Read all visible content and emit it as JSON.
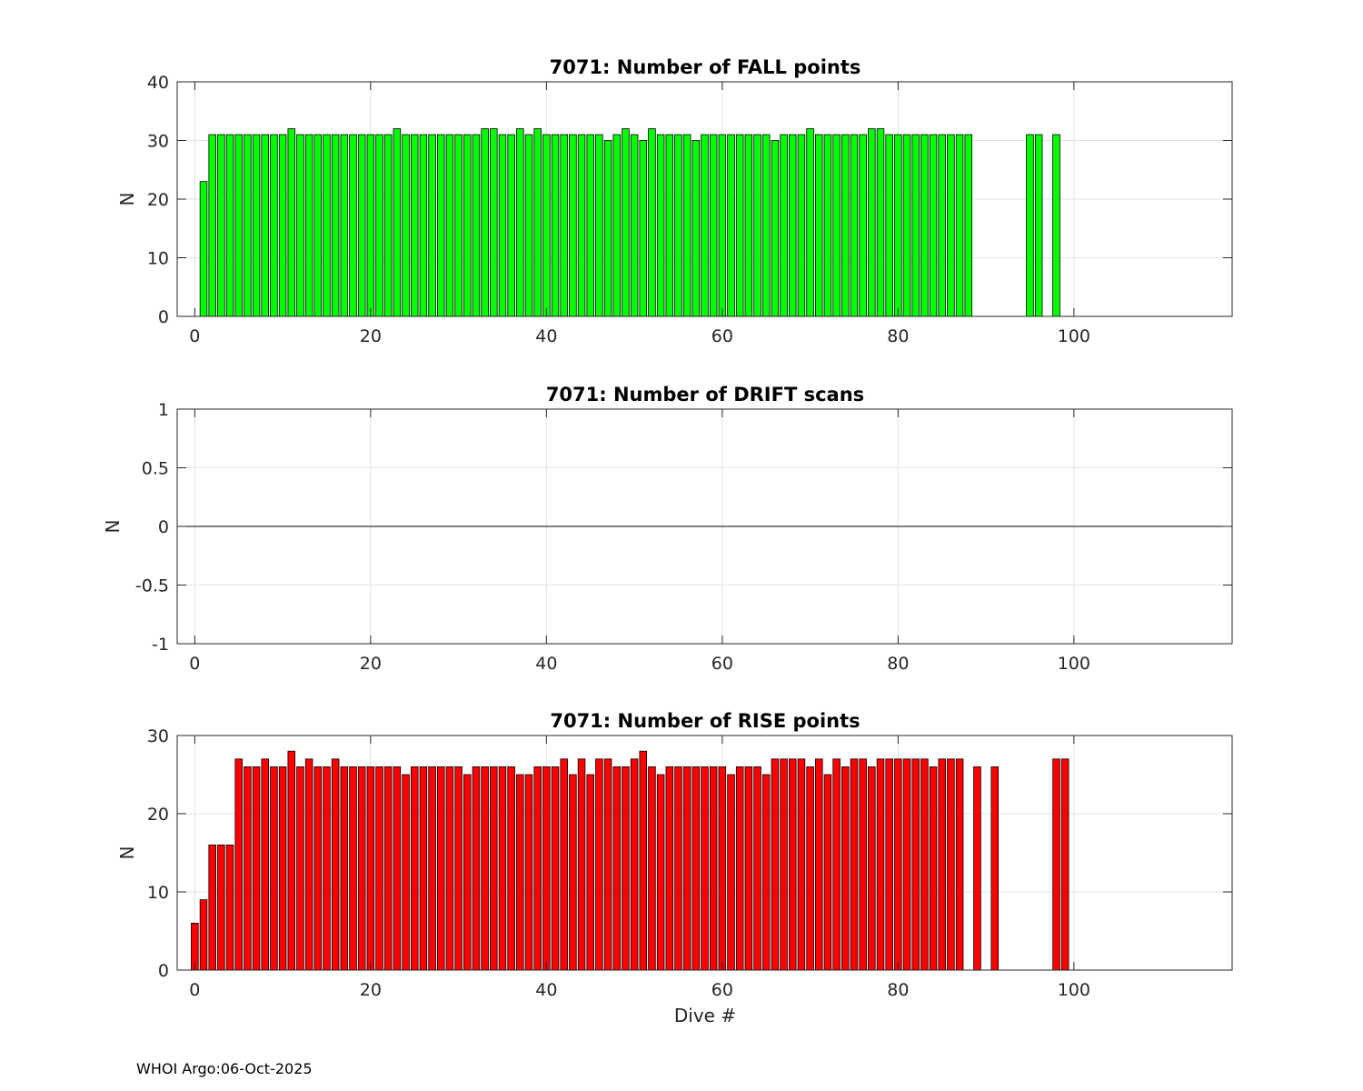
{
  "footer_text": "WHOI Argo:06-Oct-2025",
  "chart_data": [
    {
      "type": "bar",
      "title": "7071: Number of FALL points",
      "xlabel": "",
      "ylabel": "N",
      "xlim": [
        -2,
        118
      ],
      "ylim": [
        0,
        40
      ],
      "xticks": [
        "0",
        "20",
        "40",
        "60",
        "80",
        "100"
      ],
      "yticks": [
        "0",
        "10",
        "20",
        "30",
        "40"
      ],
      "grid": true,
      "bar_color": "#00ff00",
      "x": [
        1,
        2,
        3,
        4,
        5,
        6,
        7,
        8,
        9,
        10,
        11,
        12,
        13,
        14,
        15,
        16,
        17,
        18,
        19,
        20,
        21,
        22,
        23,
        24,
        25,
        26,
        27,
        28,
        29,
        30,
        31,
        32,
        33,
        34,
        35,
        36,
        37,
        38,
        39,
        40,
        41,
        42,
        43,
        44,
        45,
        46,
        47,
        48,
        49,
        50,
        51,
        52,
        53,
        54,
        55,
        56,
        57,
        58,
        59,
        60,
        61,
        62,
        63,
        64,
        65,
        66,
        67,
        68,
        69,
        70,
        71,
        72,
        73,
        74,
        75,
        76,
        77,
        78,
        79,
        80,
        81,
        82,
        83,
        84,
        85,
        86,
        87,
        88,
        95,
        96,
        98
      ],
      "values": [
        23,
        31,
        31,
        31,
        31,
        31,
        31,
        31,
        31,
        31,
        32,
        31,
        31,
        31,
        31,
        31,
        31,
        31,
        31,
        31,
        31,
        31,
        32,
        31,
        31,
        31,
        31,
        31,
        31,
        31,
        31,
        31,
        32,
        32,
        31,
        31,
        32,
        31,
        32,
        31,
        31,
        31,
        31,
        31,
        31,
        31,
        30,
        31,
        32,
        31,
        30,
        32,
        31,
        31,
        31,
        31,
        30,
        31,
        31,
        31,
        31,
        31,
        31,
        31,
        31,
        30,
        31,
        31,
        31,
        32,
        31,
        31,
        31,
        31,
        31,
        31,
        32,
        32,
        31,
        31,
        31,
        31,
        31,
        31,
        31,
        31,
        31,
        31,
        31,
        31,
        31
      ]
    },
    {
      "type": "bar",
      "title": "7071: Number of DRIFT scans",
      "xlabel": "",
      "ylabel": "N",
      "xlim": [
        -2,
        118
      ],
      "ylim": [
        -1,
        1
      ],
      "xticks": [
        "0",
        "20",
        "40",
        "60",
        "80",
        "100"
      ],
      "yticks": [
        "-1",
        "-0.5",
        "0",
        "0.5",
        "1"
      ],
      "grid": true,
      "x": [],
      "values": []
    },
    {
      "type": "bar",
      "title": "7071: Number of RISE points",
      "xlabel": "Dive #",
      "ylabel": "N",
      "xlim": [
        -2,
        118
      ],
      "ylim": [
        0,
        30
      ],
      "xticks": [
        "0",
        "20",
        "40",
        "60",
        "80",
        "100"
      ],
      "yticks": [
        "0",
        "10",
        "20",
        "30"
      ],
      "grid": true,
      "bar_color": "#ff0000",
      "x": [
        0,
        1,
        2,
        3,
        4,
        5,
        6,
        7,
        8,
        9,
        10,
        11,
        12,
        13,
        14,
        15,
        16,
        17,
        18,
        19,
        20,
        21,
        22,
        23,
        24,
        25,
        26,
        27,
        28,
        29,
        30,
        31,
        32,
        33,
        34,
        35,
        36,
        37,
        38,
        39,
        40,
        41,
        42,
        43,
        44,
        45,
        46,
        47,
        48,
        49,
        50,
        51,
        52,
        53,
        54,
        55,
        56,
        57,
        58,
        59,
        60,
        61,
        62,
        63,
        64,
        65,
        66,
        67,
        68,
        69,
        70,
        71,
        72,
        73,
        74,
        75,
        76,
        77,
        78,
        79,
        80,
        81,
        82,
        83,
        84,
        85,
        86,
        87,
        89,
        91,
        98,
        99
      ],
      "values": [
        6,
        9,
        16,
        16,
        16,
        27,
        26,
        26,
        27,
        26,
        26,
        28,
        26,
        27,
        26,
        26,
        27,
        26,
        26,
        26,
        26,
        26,
        26,
        26,
        25,
        26,
        26,
        26,
        26,
        26,
        26,
        25,
        26,
        26,
        26,
        26,
        26,
        25,
        25,
        26,
        26,
        26,
        27,
        25,
        27,
        25,
        27,
        27,
        26,
        26,
        27,
        28,
        26,
        25,
        26,
        26,
        26,
        26,
        26,
        26,
        26,
        25,
        26,
        26,
        26,
        25,
        27,
        27,
        27,
        27,
        26,
        27,
        25,
        27,
        26,
        27,
        27,
        26,
        27,
        27,
        27,
        27,
        27,
        27,
        26,
        27,
        27,
        27,
        26,
        26,
        27,
        27
      ]
    }
  ]
}
